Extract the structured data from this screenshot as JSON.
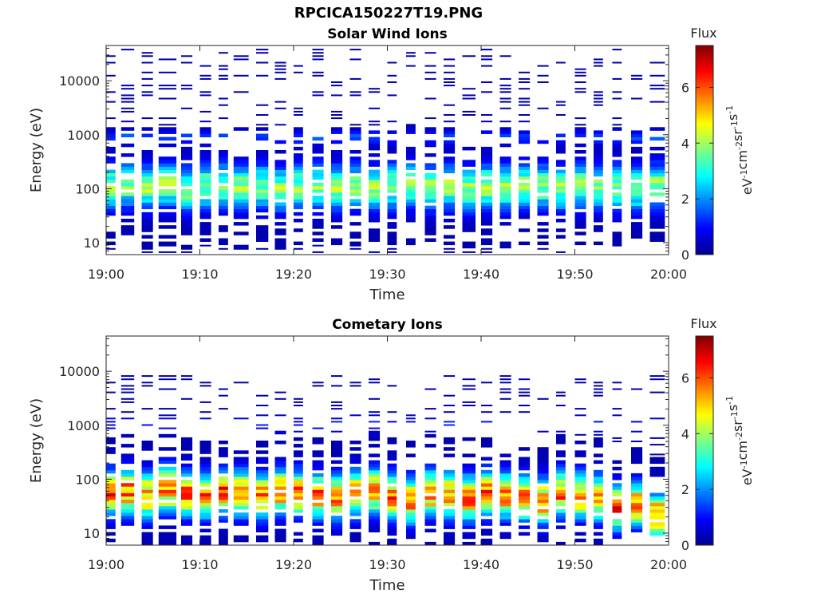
{
  "figure": {
    "title": "RPCICA150227T19.PNG"
  },
  "colormap": [
    "#00008f",
    "#0000ff",
    "#0080ff",
    "#00ffff",
    "#80ff80",
    "#ffff00",
    "#ff8000",
    "#ff0000",
    "#800000"
  ],
  "chart_data": [
    {
      "type": "heatmap",
      "title": "Solar Wind Ions",
      "xlabel": "Time",
      "ylabel": "Energy (eV)",
      "x_range": [
        "19:00",
        "20:00"
      ],
      "x_ticks": [
        "19:00",
        "19:10",
        "19:20",
        "19:30",
        "19:40",
        "19:50",
        "20:00"
      ],
      "y_scale": "log",
      "y_range": [
        6,
        45000
      ],
      "y_ticks": [
        10,
        100,
        1000,
        10000
      ],
      "y_tick_labels": [
        "10",
        "100",
        "1000",
        "10000"
      ],
      "colorbar": {
        "label": "Flux",
        "unit": "eV-1cm-2sr-1s-1",
        "range": [
          0,
          7.5
        ],
        "ticks": [
          0,
          2,
          4,
          6
        ],
        "tick_labels": [
          "0",
          "2",
          "4",
          "6"
        ]
      },
      "column_start_minutes": [
        0.0,
        1.6,
        3.8,
        5.6,
        8.0,
        10.0,
        12.0,
        13.6,
        16.0,
        18.0,
        20.0,
        22.0,
        24.0,
        26.0,
        28.0,
        30.0,
        32.0,
        34.0,
        36.0,
        38.0,
        40.0,
        42.0,
        44.0,
        46.0,
        48.0,
        50.0,
        52.0,
        54.0,
        56.0,
        58.0
      ],
      "column_end_minutes": [
        1.0,
        3.0,
        5.0,
        7.5,
        9.2,
        11.2,
        13.0,
        15.2,
        17.3,
        19.2,
        21.0,
        23.2,
        25.2,
        27.2,
        29.2,
        31.0,
        33.0,
        35.2,
        37.2,
        39.4,
        41.2,
        43.2,
        45.2,
        47.2,
        49.0,
        51.2,
        53.0,
        55.0,
        57.2,
        59.6
      ],
      "peak_flux_energy_ev": [
        110,
        120,
        105,
        115,
        100,
        110,
        120,
        105,
        110,
        100,
        110,
        115,
        105,
        110,
        100,
        110,
        120,
        105,
        110,
        100,
        110,
        105,
        115,
        110,
        100,
        110,
        105,
        110,
        100,
        110
      ],
      "peak_flux": 3.6,
      "secondary_band_energy_ev": 900,
      "secondary_band_flux": 1.2,
      "upper_energy_extent_ev": 40000
    },
    {
      "type": "heatmap",
      "title": "Cometary Ions",
      "xlabel": "Time",
      "ylabel": "Energy (eV)",
      "x_range": [
        "19:00",
        "20:00"
      ],
      "x_ticks": [
        "19:00",
        "19:10",
        "19:20",
        "19:30",
        "19:40",
        "19:50",
        "20:00"
      ],
      "y_scale": "log",
      "y_range": [
        6,
        45000
      ],
      "y_ticks": [
        10,
        100,
        1000,
        10000
      ],
      "y_tick_labels": [
        "10",
        "100",
        "1000",
        "10000"
      ],
      "colorbar": {
        "label": "Flux",
        "unit": "eV-1cm-2sr-1s-1",
        "range": [
          0,
          7.5
        ],
        "ticks": [
          0,
          2,
          4,
          6
        ],
        "tick_labels": [
          "0",
          "2",
          "4",
          "6"
        ]
      },
      "column_start_minutes": [
        0.0,
        1.6,
        3.8,
        5.6,
        8.0,
        10.0,
        12.0,
        13.6,
        16.0,
        18.0,
        20.0,
        22.0,
        24.0,
        26.0,
        28.0,
        30.0,
        32.0,
        34.0,
        36.0,
        38.0,
        40.0,
        42.0,
        44.0,
        46.0,
        48.0,
        50.0,
        52.0,
        54.0,
        56.0,
        58.0
      ],
      "column_end_minutes": [
        1.0,
        3.0,
        5.0,
        7.5,
        9.2,
        11.2,
        13.0,
        15.2,
        17.3,
        19.2,
        21.0,
        23.2,
        25.2,
        27.2,
        29.2,
        31.0,
        33.0,
        35.2,
        37.2,
        39.4,
        41.2,
        43.2,
        45.2,
        47.2,
        49.0,
        51.2,
        53.0,
        55.0,
        57.2,
        59.6
      ],
      "peak_flux_energy_ev": [
        55,
        60,
        50,
        65,
        55,
        50,
        60,
        55,
        50,
        60,
        55,
        50,
        45,
        55,
        60,
        50,
        40,
        55,
        50,
        45,
        55,
        50,
        45,
        40,
        55,
        50,
        45,
        30,
        35,
        22
      ],
      "peak_flux": 5.5,
      "secondary_band_energy_ev": 1000,
      "secondary_band_flux": 0.9,
      "upper_energy_extent_ev": 8000
    }
  ]
}
